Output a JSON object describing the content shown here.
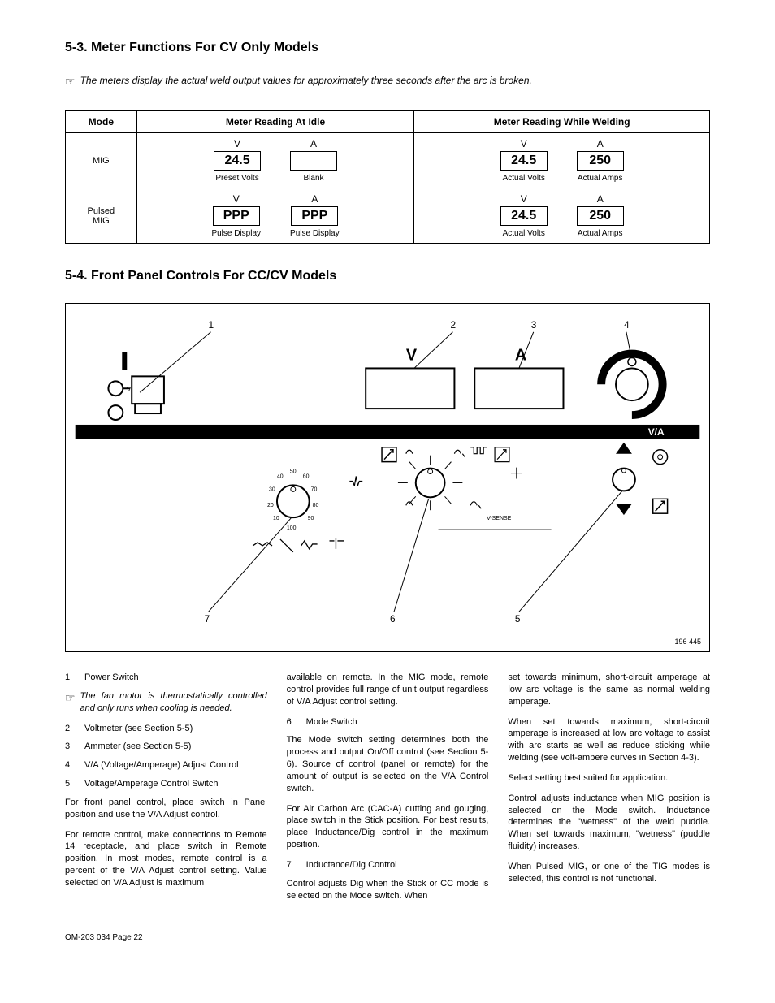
{
  "section53": {
    "heading": "5-3.  Meter Functions For CV Only Models",
    "note": "The meters display the actual weld output values for approximately three seconds after the arc is broken."
  },
  "meterTable": {
    "headers": [
      "Mode",
      "Meter Reading At Idle",
      "Meter Reading While Welding"
    ],
    "rows": [
      {
        "mode": "MIG",
        "idle": [
          {
            "letter": "V",
            "value": "24.5",
            "caption": "Preset Volts"
          },
          {
            "letter": "A",
            "value": "",
            "caption": "Blank"
          }
        ],
        "welding": [
          {
            "letter": "V",
            "value": "24.5",
            "caption": "Actual Volts"
          },
          {
            "letter": "A",
            "value": "250",
            "caption": "Actual Amps"
          }
        ]
      },
      {
        "mode": "Pulsed\nMIG",
        "idle": [
          {
            "letter": "V",
            "value": "PPP",
            "caption": "Pulse Display"
          },
          {
            "letter": "A",
            "value": "PPP",
            "caption": "Pulse Display"
          }
        ],
        "welding": [
          {
            "letter": "V",
            "value": "24.5",
            "caption": "Actual Volts"
          },
          {
            "letter": "A",
            "value": "250",
            "caption": "Actual Amps"
          }
        ]
      }
    ]
  },
  "section54": {
    "heading": "5-4.  Front Panel Controls For CC/CV Models"
  },
  "diagram": {
    "callouts": {
      "1": "1",
      "2": "2",
      "3": "3",
      "4": "4",
      "5": "5",
      "6": "6",
      "7": "7"
    },
    "labels": {
      "V": "V",
      "A": "A",
      "VA": "V/A",
      "VSENSE": "V-SENSE"
    },
    "dialNumbers": [
      "10",
      "20",
      "30",
      "40",
      "50",
      "60",
      "70",
      "80",
      "90",
      "100"
    ],
    "ref": "196 445"
  },
  "body": {
    "col1": {
      "i1": {
        "n": "1",
        "t": "Power Switch"
      },
      "note": "The fan motor is thermostatically controlled and only runs when cooling is needed.",
      "i2": {
        "n": "2",
        "t": "Voltmeter (see Section 5-5)"
      },
      "i3": {
        "n": "3",
        "t": "Ammeter (see Section 5-5)"
      },
      "i4": {
        "n": "4",
        "t": "V/A (Voltage/Amperage) Adjust Control"
      },
      "i5": {
        "n": "5",
        "t": "Voltage/Amperage Control Switch"
      },
      "p1": "For front panel control, place switch in Panel position and use the V/A Adjust control.",
      "p2": "For remote control, make connections to Remote 14 receptacle, and place switch in Remote position. In most modes, remote control is a percent of the V/A Adjust control setting. Value selected on V/A Adjust is maximum"
    },
    "col2": {
      "p1": "available on remote. In the MIG mode, remote control provides full range of unit output regardless of V/A Adjust  control setting.",
      "i6": {
        "n": "6",
        "t": "Mode Switch"
      },
      "p2": "The Mode switch setting determines both the process and output On/Off control (see Section 5-6). Source of control (panel or remote) for the amount of output is selected on the V/A Control switch.",
      "p3": "For Air Carbon Arc (CAC-A) cutting and gouging, place switch in the Stick position. For best results, place Inductance/Dig control in the maximum position.",
      "i7": {
        "n": "7",
        "t": "Inductance/Dig Control"
      },
      "p4": "Control adjusts Dig when the Stick or CC mode is selected on the Mode switch. When"
    },
    "col3": {
      "p1": "set towards minimum, short-circuit amperage at low arc voltage is the same as normal welding amperage.",
      "p2": "When set towards maximum, short-circuit amperage is increased at low arc voltage to assist with arc starts as well as reduce sticking while welding (see volt-ampere curves in Section 4-3).",
      "p3": "Select setting best suited for application.",
      "p4": "Control adjusts inductance when MIG position is selected on the Mode switch. Inductance determines the \"wetness\" of the weld puddle. When set towards maximum, \"wetness\" (puddle fluidity) increases.",
      "p5": "When Pulsed MIG, or one of the TIG modes is selected, this control is not functional."
    }
  },
  "footer": "OM-203 034 Page 22"
}
